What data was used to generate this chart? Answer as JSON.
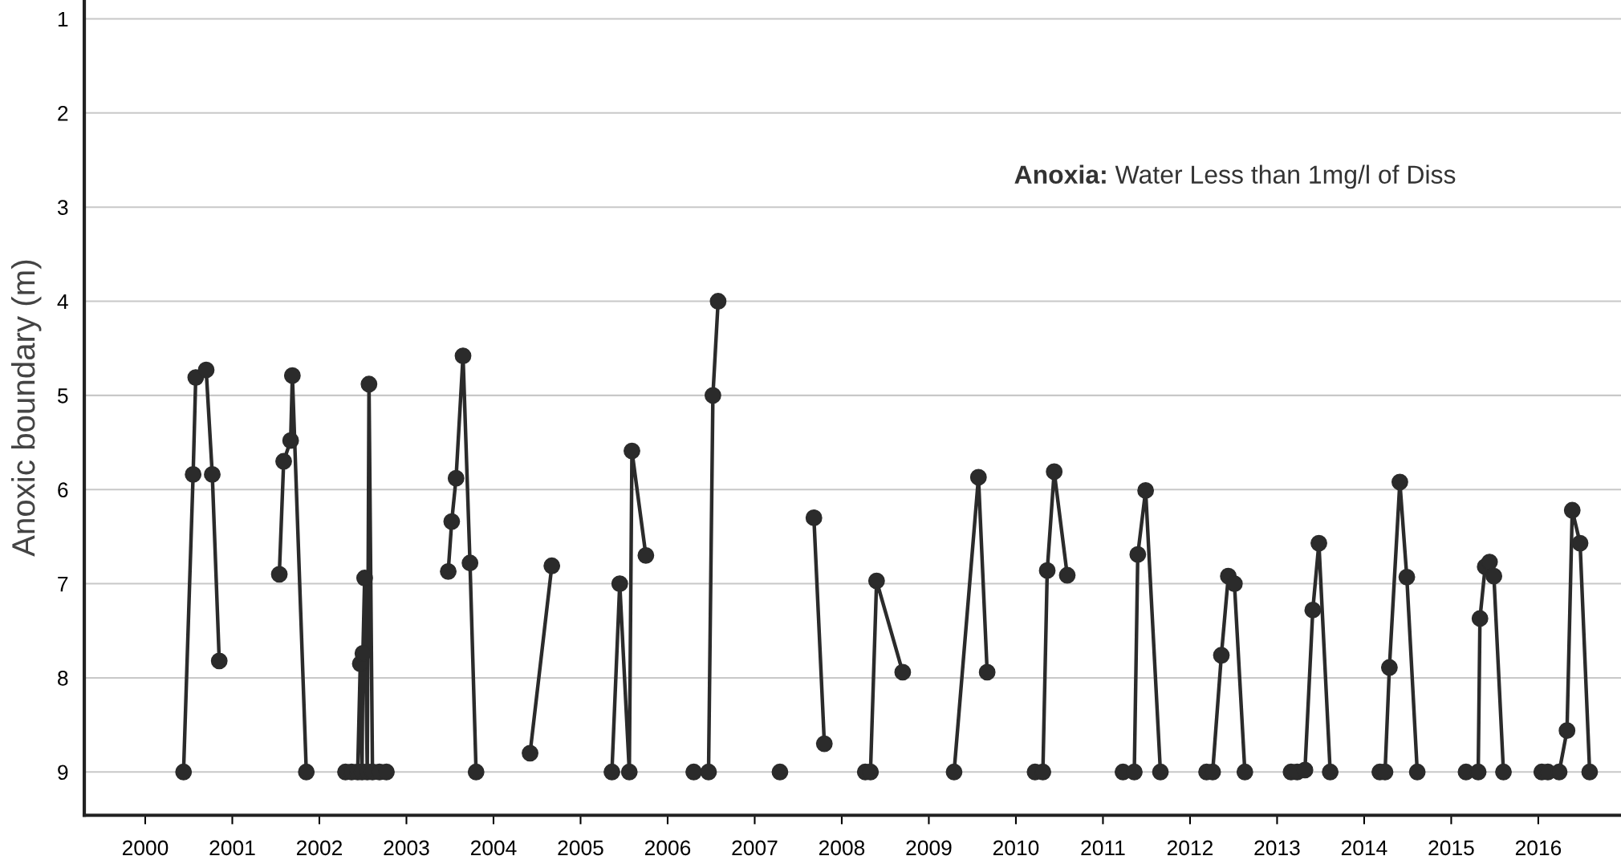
{
  "chart_data": {
    "type": "line",
    "ylabel": "Anoxic boundary (m)",
    "annotations": [
      "Anoxia:",
      "Water Less than 1mg/l of Diss"
    ],
    "xlim": [
      1999.3,
      2016.95
    ],
    "xticks": [
      2000,
      2001,
      2002,
      2003,
      2004,
      2005,
      2006,
      2007,
      2008,
      2009,
      2010,
      2011,
      2012,
      2013,
      2014,
      2015,
      2016
    ],
    "ylim": [
      9.46,
      0.8
    ],
    "yticks": [
      1,
      2,
      3,
      4,
      5,
      6,
      7,
      8,
      9
    ],
    "grid": "y",
    "marker": "circle",
    "line_style": "solid",
    "series": [
      {
        "color": "#2b2b2b",
        "x": [
          2000.44,
          2000.55,
          2000.58,
          2000.7,
          2000.77,
          2000.85,
          2001.2,
          2001.54,
          2001.59,
          2001.67,
          2001.69,
          2001.85,
          2002.1,
          2002.3,
          2002.37,
          2002.44,
          2002.47,
          2002.49,
          2002.5,
          2002.52,
          2002.55,
          2002.57,
          2002.61,
          2002.69,
          2002.77,
          2003.1,
          2003.48,
          2003.52,
          2003.57,
          2003.65,
          2003.73,
          2003.8,
          2004.1,
          2004.42,
          2004.67,
          2005.0,
          2005.36,
          2005.45,
          2005.56,
          2005.59,
          2005.75,
          2006.0,
          2006.3,
          2006.47,
          2006.52,
          2006.58,
          2007.0,
          2007.29,
          2007.5,
          2007.68,
          2007.8,
          2008.0,
          2008.27,
          2008.33,
          2008.4,
          2008.7,
          2009.0,
          2009.29,
          2009.57,
          2009.67,
          2010.0,
          2010.22,
          2010.31,
          2010.36,
          2010.44,
          2010.59,
          2010.9,
          2011.23,
          2011.36,
          2011.4,
          2011.49,
          2011.66,
          2011.9,
          2012.19,
          2012.26,
          2012.36,
          2012.44,
          2012.51,
          2012.63,
          2012.9,
          2013.16,
          2013.23,
          2013.32,
          2013.41,
          2013.48,
          2013.61,
          2013.9,
          2014.18,
          2014.24,
          2014.29,
          2014.41,
          2014.49,
          2014.61,
          2014.9,
          2015.17,
          2015.31,
          2015.33,
          2015.39,
          2015.44,
          2015.49,
          2015.6,
          2015.8,
          2016.04,
          2016.11,
          2016.24,
          2016.33,
          2016.39,
          2016.48,
          2016.59
        ],
        "values": [
          9,
          5.84,
          4.81,
          4.73,
          5.84,
          7.82,
          null,
          6.9,
          5.7,
          5.48,
          4.79,
          9,
          null,
          9,
          9,
          9,
          7.85,
          9,
          7.74,
          6.94,
          9,
          4.88,
          9,
          9,
          9,
          null,
          6.87,
          6.34,
          5.88,
          4.58,
          6.78,
          9,
          null,
          8.8,
          6.81,
          null,
          9,
          7.0,
          9,
          5.59,
          6.7,
          null,
          9,
          9,
          5.0,
          4.0,
          null,
          9,
          null,
          6.3,
          8.7,
          null,
          9,
          9,
          6.97,
          7.94,
          null,
          9,
          5.87,
          7.94,
          null,
          9,
          9,
          6.86,
          5.81,
          6.91,
          null,
          9,
          9,
          6.69,
          6.01,
          9,
          null,
          9,
          9,
          7.76,
          6.92,
          7.0,
          9,
          null,
          9,
          9,
          8.98,
          7.28,
          6.57,
          9,
          null,
          9,
          9,
          7.89,
          5.92,
          6.93,
          9,
          null,
          9,
          9,
          7.37,
          6.82,
          6.77,
          6.92,
          9,
          null,
          9,
          9,
          9,
          8.56,
          6.22,
          6.57,
          9
        ]
      }
    ]
  }
}
